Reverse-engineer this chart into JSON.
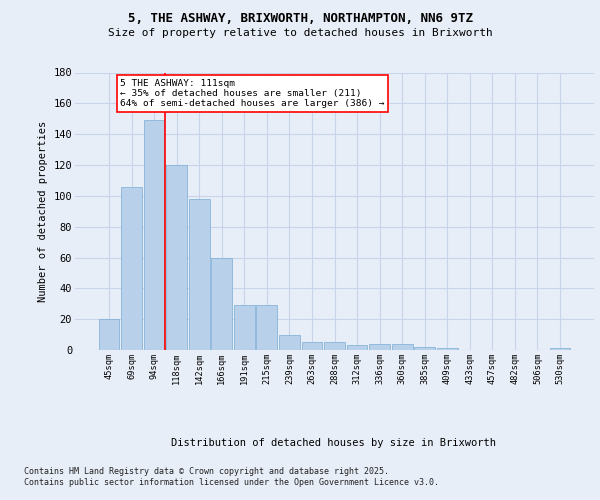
{
  "title_line1": "5, THE ASHWAY, BRIXWORTH, NORTHAMPTON, NN6 9TZ",
  "title_line2": "Size of property relative to detached houses in Brixworth",
  "xlabel": "Distribution of detached houses by size in Brixworth",
  "ylabel": "Number of detached properties",
  "categories": [
    "45sqm",
    "69sqm",
    "94sqm",
    "118sqm",
    "142sqm",
    "166sqm",
    "191sqm",
    "215sqm",
    "239sqm",
    "263sqm",
    "288sqm",
    "312sqm",
    "336sqm",
    "360sqm",
    "385sqm",
    "409sqm",
    "433sqm",
    "457sqm",
    "482sqm",
    "506sqm",
    "530sqm"
  ],
  "values": [
    20,
    106,
    149,
    120,
    98,
    60,
    29,
    29,
    10,
    5,
    5,
    3,
    4,
    4,
    2,
    1,
    0,
    0,
    0,
    0,
    1
  ],
  "bar_color": "#b8d0ea",
  "bar_edge_color": "#7aadd4",
  "grid_color": "#c8d4e8",
  "background_color": "#e8eef8",
  "vline_x_index": 3,
  "vline_color": "red",
  "annotation_text": "5 THE ASHWAY: 111sqm\n← 35% of detached houses are smaller (211)\n64% of semi-detached houses are larger (386) →",
  "annotation_box_color": "white",
  "annotation_box_edge_color": "red",
  "footer_text": "Contains HM Land Registry data © Crown copyright and database right 2025.\nContains public sector information licensed under the Open Government Licence v3.0.",
  "ylim": [
    0,
    180
  ],
  "yticks": [
    0,
    20,
    40,
    60,
    80,
    100,
    120,
    140,
    160,
    180
  ]
}
